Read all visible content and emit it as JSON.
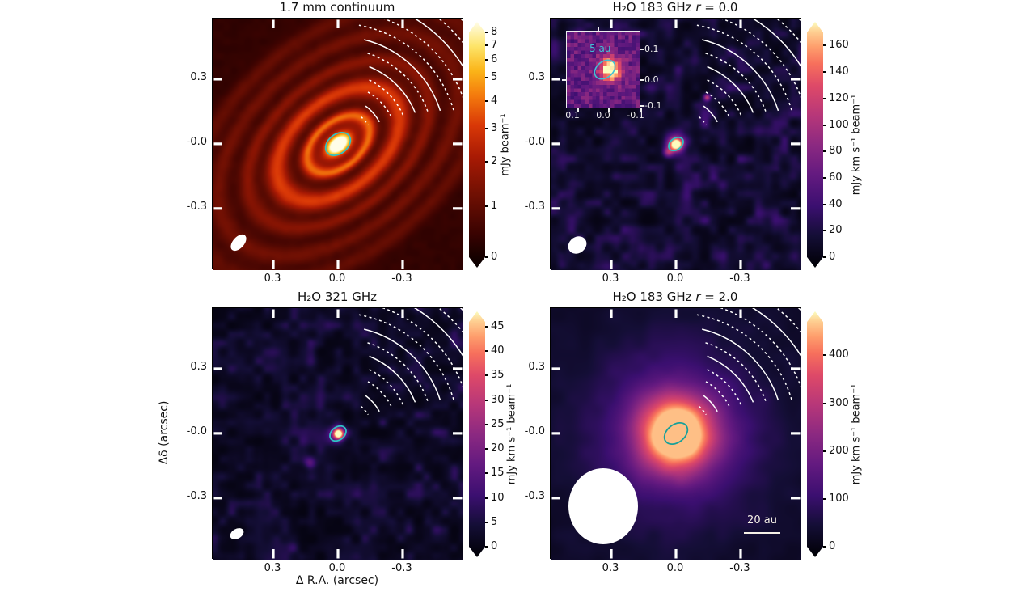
{
  "shared": {
    "ylabel": "Δδ (arcsec)",
    "xlabel": "Δ R.A. (arcsec)",
    "xticks": [
      {
        "label": "0.3",
        "f": 0.242
      },
      {
        "label": "0.0",
        "f": 0.5
      },
      {
        "label": "-0.3",
        "f": 0.758
      }
    ],
    "yticks": [
      {
        "label": "0.3",
        "f": 0.241
      },
      {
        "label": "-0.0",
        "f": 0.498
      },
      {
        "label": "-0.3",
        "f": 0.755
      }
    ]
  },
  "colormaps": {
    "hot": [
      [
        0,
        "#060000"
      ],
      [
        0.14,
        "#3a0301"
      ],
      [
        0.3,
        "#711003"
      ],
      [
        0.45,
        "#a81a04"
      ],
      [
        0.58,
        "#d93807"
      ],
      [
        0.7,
        "#f47a0d"
      ],
      [
        0.8,
        "#fbb418"
      ],
      [
        0.9,
        "#fde468"
      ],
      [
        1,
        "#fffde8"
      ]
    ],
    "magma": [
      [
        0,
        "#000004"
      ],
      [
        0.13,
        "#140e36"
      ],
      [
        0.25,
        "#3b0f70"
      ],
      [
        0.38,
        "#641a80"
      ],
      [
        0.5,
        "#8c2981"
      ],
      [
        0.62,
        "#b73779"
      ],
      [
        0.74,
        "#de4968"
      ],
      [
        0.83,
        "#f7705c"
      ],
      [
        0.9,
        "#fe9f6d"
      ],
      [
        0.96,
        "#fecf92"
      ],
      [
        1,
        "#fcfdbf"
      ]
    ],
    "contour_color": "#ffffff",
    "center_contour_color": "#2ec4c6"
  },
  "arcs": [
    {
      "r": 44,
      "a0": -50,
      "a1": -32,
      "d": 1
    },
    {
      "r": 58,
      "a0": -54,
      "a1": -28,
      "d": 0
    },
    {
      "r": 74,
      "a0": -60,
      "a1": -26,
      "d": 1
    },
    {
      "r": 88,
      "a0": -64,
      "a1": -24,
      "d": 1
    },
    {
      "r": 103,
      "a0": -68,
      "a1": -22,
      "d": 0
    },
    {
      "r": 118,
      "a0": -72,
      "a1": -20,
      "d": 1
    },
    {
      "r": 133,
      "a0": -76,
      "a1": -18,
      "d": 0
    },
    {
      "r": 149,
      "a0": -80,
      "a1": -16,
      "d": 1
    },
    {
      "r": 165,
      "a0": -84,
      "a1": -15,
      "d": 1
    },
    {
      "r": 182,
      "a0": -88,
      "a1": -14,
      "d": 0
    },
    {
      "r": 199,
      "a0": -92,
      "a1": -13,
      "d": 1
    },
    {
      "r": 217,
      "a0": -96,
      "a1": -12,
      "d": 0
    },
    {
      "r": 235,
      "a0": -99,
      "a1": -11,
      "d": 1
    }
  ],
  "chart_data": [
    {
      "type": "heatmap",
      "title": {
        "main": "1.7 mm continuum",
        "r": "",
        "value": ""
      },
      "colormap": "hot",
      "value_range": [
        0,
        8.5
      ],
      "cbar": {
        "unit": "mJy beam⁻¹",
        "ticks": [
          [
            "0",
            0
          ],
          [
            "1",
            0.228
          ],
          [
            "2",
            0.424
          ],
          [
            "3",
            0.572
          ],
          [
            "4",
            0.696
          ],
          [
            "5",
            0.797
          ],
          [
            "6",
            0.877
          ],
          [
            "7",
            0.942
          ],
          [
            "8",
            1
          ]
        ]
      },
      "beam": {
        "cx": 32,
        "cy": 277,
        "rx": 12,
        "ry": 7,
        "angle": -48
      },
      "center_contour": {
        "cx": 155,
        "cy": 155,
        "rx": 17,
        "ry": 12,
        "angle": -38,
        "color": "#2ec4c6"
      },
      "render": {
        "scene": "rings",
        "seed": 3,
        "rot_deg": -40,
        "axis_ratio": 0.62,
        "core": {
          "a": 0.95,
          "s": 16
        },
        "inner": {
          "a": 0.3,
          "s": 34
        },
        "rings": [
          {
            "r": 45,
            "a": 0.45,
            "s": 10
          },
          {
            "r": 88,
            "a": 0.42,
            "s": 16
          },
          {
            "r": 130,
            "a": 0.2,
            "s": 13
          },
          {
            "r": 172,
            "a": 0.15,
            "s": 15
          },
          {
            "r": 212,
            "a": 0.12,
            "s": 16
          }
        ]
      }
    },
    {
      "type": "heatmap",
      "title": {
        "main": "H₂O 183 GHz ",
        "r": "r",
        "value": " = 0.0"
      },
      "colormap": "magma",
      "value_range": [
        0,
        170
      ],
      "cbar": {
        "unit": "mJy km s⁻¹ beam⁻¹",
        "ticks": [
          [
            "0",
            0
          ],
          [
            "20",
            0.118
          ],
          [
            "40",
            0.235
          ],
          [
            "60",
            0.353
          ],
          [
            "80",
            0.471
          ],
          [
            "100",
            0.588
          ],
          [
            "120",
            0.706
          ],
          [
            "140",
            0.824
          ],
          [
            "160",
            0.941
          ]
        ]
      },
      "beam": {
        "cx": 33,
        "cy": 280,
        "rx": 12,
        "ry": 10,
        "angle": -35
      },
      "center_contour": {
        "cx": 155,
        "cy": 155,
        "rx": 10,
        "ry": 7,
        "angle": -38,
        "color": "#2ec4c6"
      },
      "inset": {
        "label": "5 au",
        "xticks": [
          "0.1",
          "0.0",
          "-0.1"
        ],
        "yticks": [
          "0.1",
          "0.0",
          "-0.1"
        ],
        "ellipse": {
          "cx": 47,
          "cy": 47,
          "rx": 14,
          "ry": 10,
          "angle": -38
        }
      },
      "render": {
        "scene": "noise_peak",
        "seed": 11,
        "noise_amp": 0.26,
        "noise_exp": 1.7,
        "peak": {
          "a": 0.9,
          "s": 7
        },
        "peak2": {
          "a": 0.4,
          "s": 13
        },
        "spots": [
          {
            "x": 193,
            "y": 97,
            "a": 0.5,
            "s": 4
          },
          {
            "x": 145,
            "y": 165,
            "a": 0.35,
            "s": 6
          }
        ]
      }
    },
    {
      "type": "heatmap",
      "title": {
        "main": "H₂O 321 GHz",
        "r": "",
        "value": ""
      },
      "colormap": "magma",
      "value_range": [
        0,
        46
      ],
      "cbar": {
        "unit": "mJy km s⁻¹ beam⁻¹",
        "ticks": [
          [
            "0",
            0
          ],
          [
            "5",
            0.109
          ],
          [
            "10",
            0.217
          ],
          [
            "15",
            0.326
          ],
          [
            "20",
            0.435
          ],
          [
            "25",
            0.543
          ],
          [
            "30",
            0.652
          ],
          [
            "35",
            0.761
          ],
          [
            "40",
            0.87
          ],
          [
            "45",
            0.978
          ]
        ]
      },
      "beam": {
        "cx": 30,
        "cy": 279,
        "rx": 9,
        "ry": 6,
        "angle": -30
      },
      "center_contour": {
        "cx": 155,
        "cy": 155,
        "rx": 11,
        "ry": 8,
        "angle": -38,
        "color": "#2ec4c6"
      },
      "render": {
        "scene": "noise_peak",
        "seed": 27,
        "noise_amp": 0.22,
        "noise_exp": 1.9,
        "peak": {
          "a": 0.85,
          "s": 5.5
        },
        "peak2": {
          "a": 0.35,
          "s": 10
        },
        "spots": [
          {
            "x": 120,
            "y": 190,
            "a": 0.25,
            "s": 7
          }
        ]
      }
    },
    {
      "type": "heatmap",
      "title": {
        "main": "H₂O 183 GHz ",
        "r": "r",
        "value": " = 2.0"
      },
      "colormap": "magma",
      "value_range": [
        0,
        470
      ],
      "cbar": {
        "unit": "mJy km s⁻¹ beam⁻¹",
        "ticks": [
          [
            "0",
            0
          ],
          [
            "100",
            0.213
          ],
          [
            "200",
            0.426
          ],
          [
            "300",
            0.638
          ],
          [
            "400",
            0.851
          ]
        ]
      },
      "beam": {
        "cx": 65,
        "cy": 245,
        "rx": 43,
        "ry": 47,
        "angle": 0
      },
      "center_contour": {
        "cx": 155,
        "cy": 155,
        "rx": 16,
        "ry": 11,
        "angle": -38,
        "color": "#16a09a"
      },
      "scalebar": {
        "label": "20 au"
      },
      "render": {
        "scene": "smooth_blob",
        "seed": 5,
        "base": 0.06,
        "noise_amp": 0.06,
        "peak": {
          "a": 0.9,
          "s": 46
        },
        "halo": {
          "a": 0.28,
          "s": 105
        }
      }
    }
  ]
}
